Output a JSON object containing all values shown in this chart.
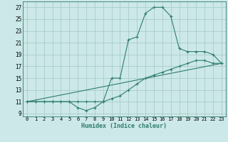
{
  "title": "",
  "xlabel": "Humidex (Indice chaleur)",
  "background_color": "#cce8e8",
  "grid_color": "#aacccc",
  "line_color": "#2e7d6e",
  "xlim": [
    -0.5,
    23.5
  ],
  "ylim": [
    8.5,
    28
  ],
  "xticks": [
    0,
    1,
    2,
    3,
    4,
    5,
    6,
    7,
    8,
    9,
    10,
    11,
    12,
    13,
    14,
    15,
    16,
    17,
    18,
    19,
    20,
    21,
    22,
    23
  ],
  "yticks": [
    9,
    11,
    13,
    15,
    17,
    19,
    21,
    23,
    25,
    27
  ],
  "line1_x": [
    0,
    1,
    2,
    3,
    4,
    5,
    6,
    7,
    8,
    9,
    10,
    11,
    12,
    13,
    14,
    15,
    16,
    17,
    18,
    19,
    20,
    21,
    22,
    23
  ],
  "line1_y": [
    11,
    11,
    11,
    11,
    11,
    11,
    10,
    9.5,
    10,
    11,
    15,
    15,
    21.5,
    22,
    26,
    27,
    27,
    25.5,
    20,
    19.5,
    19.5,
    19.5,
    19,
    17.5
  ],
  "line2_x": [
    0,
    1,
    2,
    3,
    4,
    5,
    6,
    7,
    8,
    9,
    10,
    11,
    12,
    13,
    14,
    15,
    16,
    17,
    18,
    19,
    20,
    21,
    22,
    23
  ],
  "line2_y": [
    11,
    11,
    11,
    11,
    11,
    11,
    11,
    11,
    11,
    11,
    11.5,
    12,
    13,
    14,
    15,
    15.5,
    16,
    16.5,
    17,
    17.5,
    18,
    18,
    17.5,
    17.5
  ],
  "line3_x": [
    0,
    23
  ],
  "line3_y": [
    11,
    17.5
  ]
}
